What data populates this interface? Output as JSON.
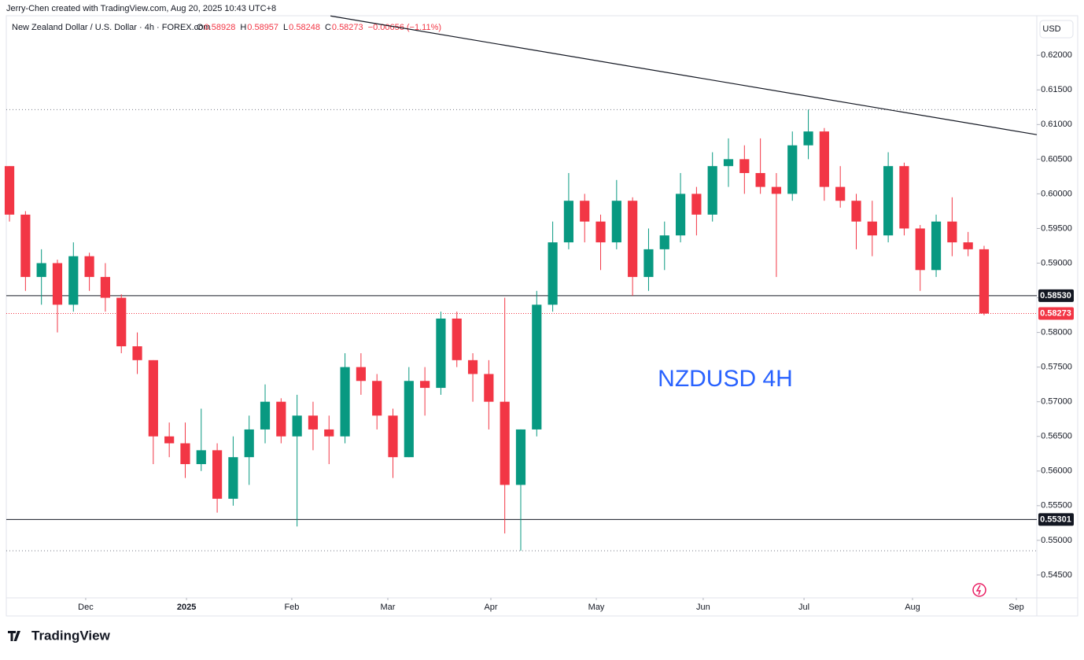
{
  "header": {
    "credit": "Jerry-Chen created with TradingView.com, Aug 20, 2025 10:43 UTC+8",
    "symbol": "New Zealand Dollar / U.S. Dollar · 4h · FOREX.com",
    "ohlc": [
      {
        "key": "O",
        "text": "0.58928"
      },
      {
        "key": "H",
        "text": "0.58957"
      },
      {
        "key": "L",
        "text": "0.58248"
      },
      {
        "key": "C",
        "text": "0.58273"
      }
    ],
    "change": "−0.00656 (−1.11%)"
  },
  "currency": "USD",
  "footer": "TradingView",
  "chart_data": {
    "type": "candlestick",
    "annotation": "NZDUSD 4H",
    "up_color": "#089981",
    "down_color": "#f23645",
    "x": [
      0,
      1,
      2,
      3,
      4,
      5,
      6,
      7,
      8,
      9,
      10,
      11,
      12,
      13,
      14,
      15,
      16,
      17,
      18,
      19,
      20,
      21,
      22,
      23,
      24,
      25,
      26,
      27,
      28,
      29,
      30,
      31,
      32,
      33,
      34,
      35,
      36,
      37,
      38,
      39,
      40,
      41,
      42,
      43,
      44,
      45,
      46,
      47,
      48,
      49,
      50,
      51,
      52,
      53,
      54,
      55,
      56,
      57,
      58,
      59,
      60,
      61
    ],
    "open": [
      0.604,
      0.597,
      0.588,
      0.59,
      0.584,
      0.591,
      0.588,
      0.585,
      0.578,
      0.576,
      0.565,
      0.564,
      0.561,
      0.563,
      0.556,
      0.562,
      0.566,
      0.57,
      0.565,
      0.568,
      0.566,
      0.565,
      0.575,
      0.573,
      0.568,
      0.562,
      0.573,
      0.572,
      0.582,
      0.576,
      0.574,
      0.57,
      0.558,
      0.566,
      0.584,
      0.593,
      0.599,
      0.596,
      0.593,
      0.599,
      0.588,
      0.592,
      0.594,
      0.6,
      0.597,
      0.604,
      0.605,
      0.603,
      0.601,
      0.6,
      0.607,
      0.609,
      0.601,
      0.599,
      0.596,
      0.594,
      0.604,
      0.595,
      0.589,
      0.596,
      0.593,
      0.592
    ],
    "high": [
      0.604,
      0.5975,
      0.592,
      0.5905,
      0.593,
      0.5915,
      0.59,
      0.5855,
      0.58,
      0.576,
      0.567,
      0.567,
      0.569,
      0.564,
      0.565,
      0.568,
      0.5725,
      0.5705,
      0.571,
      0.57,
      0.568,
      0.577,
      0.577,
      0.574,
      0.569,
      0.575,
      0.575,
      0.583,
      0.583,
      0.577,
      0.576,
      0.585,
      0.566,
      0.586,
      0.596,
      0.603,
      0.6,
      0.597,
      0.602,
      0.5995,
      0.595,
      0.596,
      0.603,
      0.601,
      0.606,
      0.608,
      0.607,
      0.608,
      0.603,
      0.609,
      0.61215,
      0.6095,
      0.604,
      0.6,
      0.599,
      0.606,
      0.6045,
      0.5955,
      0.597,
      0.5995,
      0.5945,
      0.5925
    ],
    "low": [
      0.596,
      0.586,
      0.584,
      0.58,
      0.583,
      0.586,
      0.583,
      0.577,
      0.574,
      0.561,
      0.562,
      0.559,
      0.56,
      0.554,
      0.555,
      0.558,
      0.564,
      0.564,
      0.552,
      0.563,
      0.561,
      0.564,
      0.571,
      0.566,
      0.559,
      0.562,
      0.568,
      0.571,
      0.575,
      0.57,
      0.566,
      0.551,
      0.5485,
      0.565,
      0.583,
      0.592,
      0.593,
      0.589,
      0.592,
      0.5853,
      0.586,
      0.589,
      0.593,
      0.594,
      0.596,
      0.601,
      0.6,
      0.6,
      0.588,
      0.599,
      0.605,
      0.599,
      0.598,
      0.592,
      0.591,
      0.593,
      0.594,
      0.586,
      0.588,
      0.591,
      0.591,
      0.58248
    ],
    "close": [
      0.597,
      0.588,
      0.59,
      0.584,
      0.591,
      0.588,
      0.585,
      0.578,
      0.576,
      0.565,
      0.564,
      0.561,
      0.563,
      0.556,
      0.562,
      0.566,
      0.57,
      0.565,
      0.568,
      0.566,
      0.565,
      0.575,
      0.573,
      0.568,
      0.562,
      0.573,
      0.572,
      0.582,
      0.576,
      0.574,
      0.57,
      0.558,
      0.566,
      0.584,
      0.593,
      0.599,
      0.596,
      0.593,
      0.599,
      0.588,
      0.592,
      0.594,
      0.6,
      0.597,
      0.604,
      0.605,
      0.603,
      0.601,
      0.6,
      0.607,
      0.609,
      0.601,
      0.599,
      0.596,
      0.594,
      0.604,
      0.595,
      0.589,
      0.596,
      0.593,
      0.592,
      0.58273
    ],
    "xlim": [
      -0.2,
      64.3
    ],
    "xticks": [
      {
        "value": 4.77,
        "label": "Dec"
      },
      {
        "value": 11.08,
        "label": "2025"
      },
      {
        "value": 17.67,
        "label": "Feb"
      },
      {
        "value": 23.68,
        "label": "Mar"
      },
      {
        "value": 30.13,
        "label": "Apr"
      },
      {
        "value": 36.73,
        "label": "May"
      },
      {
        "value": 43.42,
        "label": "Jun"
      },
      {
        "value": 49.73,
        "label": "Jul"
      },
      {
        "value": 56.52,
        "label": "Aug"
      },
      {
        "value": 63.02,
        "label": "Sep"
      }
    ],
    "ylim": [
      0.5417,
      0.6257
    ],
    "yticks": [
      {
        "value": 0.545,
        "label": "0.54500"
      },
      {
        "value": 0.55,
        "label": "0.55000"
      },
      {
        "value": 0.555,
        "label": "0.55500"
      },
      {
        "value": 0.56,
        "label": "0.56000"
      },
      {
        "value": 0.565,
        "label": "0.56500"
      },
      {
        "value": 0.57,
        "label": "0.57000"
      },
      {
        "value": 0.575,
        "label": "0.57500"
      },
      {
        "value": 0.58,
        "label": "0.58000"
      },
      {
        "value": 0.585,
        "label": "0.58500"
      },
      {
        "value": 0.59,
        "label": "0.59000"
      },
      {
        "value": 0.595,
        "label": "0.59500"
      },
      {
        "value": 0.6,
        "label": "0.60000"
      },
      {
        "value": 0.605,
        "label": "0.60500"
      },
      {
        "value": 0.61,
        "label": "0.61000"
      },
      {
        "value": 0.615,
        "label": "0.61500"
      },
      {
        "value": 0.62,
        "label": "0.62000"
      }
    ],
    "levels": [
      {
        "value": 0.5853,
        "label": "0.58530"
      },
      {
        "value": 0.55301,
        "label": "0.55301"
      }
    ],
    "dotted_levels": [
      0.61215,
      0.5485
    ],
    "last_price": {
      "value": 0.58273,
      "label": "0.58273",
      "color": "#f23645"
    },
    "trendline": {
      "x": [
        20.09,
        64.3
      ],
      "y": [
        0.62567,
        0.60854
      ]
    }
  }
}
